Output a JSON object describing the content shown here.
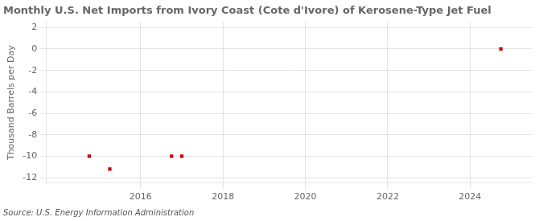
{
  "chart_data": {
    "type": "scatter",
    "title": "Monthly U.S. Net Imports from Ivory Coast (Cote d'Ivore) of Kerosene-Type Jet Fuel",
    "ylabel": "Thousand Barrels per Day",
    "annotations": [
      "Source: U.S. Energy Information Administration"
    ],
    "x": [
      2014.75,
      2015.25,
      2016.75,
      2017.0,
      2024.75
    ],
    "values": [
      -10,
      -11.2,
      -10,
      -10,
      0
    ],
    "color": "#cc0000",
    "marker": "square",
    "xlim": [
      2013.7,
      2025.5
    ],
    "ylim": [
      -12.5,
      2.5
    ],
    "xticks": [
      2016,
      2018,
      2020,
      2022,
      2024
    ],
    "yticks": [
      2,
      0,
      -2,
      -4,
      -6,
      -8,
      -10,
      -12
    ],
    "grid": true
  }
}
